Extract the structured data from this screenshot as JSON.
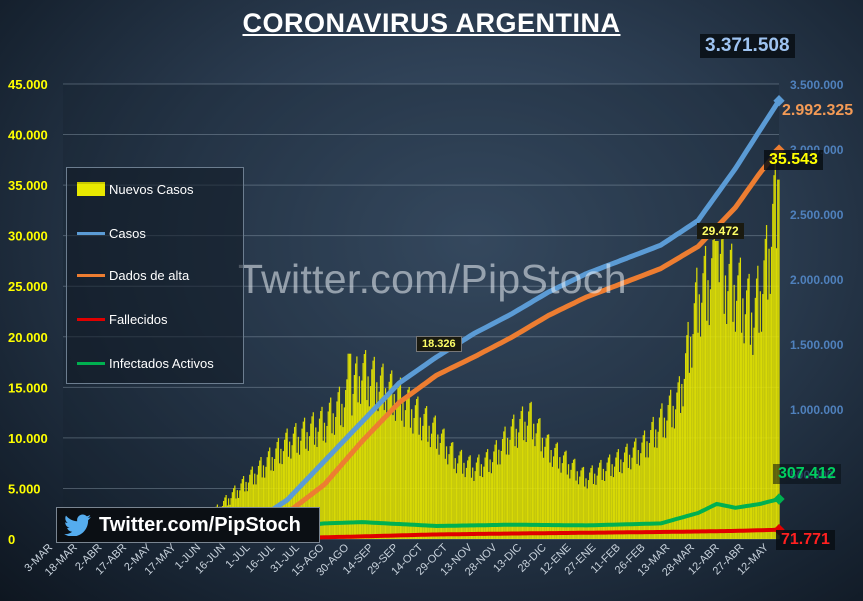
{
  "title": "CORONAVIRUS ARGENTINA",
  "watermark": "Twitter.com/PipStoch",
  "badge": {
    "text": "Twitter.com/PipStoch",
    "icon": "twitter-bird-icon"
  },
  "colors": {
    "nuevos": "#e8e800",
    "casos": "#5b9bd5",
    "alta": "#ed7d31",
    "fallecidos": "#e00000",
    "activos": "#00b050",
    "left_axis_text": "#ffff00",
    "right_axis_text": "#4f81bd"
  },
  "legend": [
    {
      "label": "Nuevos Casos",
      "key": "nuevos",
      "icon": "bar-swatch"
    },
    {
      "label": "Casos",
      "key": "casos",
      "icon": "line-swatch"
    },
    {
      "label": "Dados de alta",
      "key": "alta",
      "icon": "line-swatch"
    },
    {
      "label": "Fallecidos",
      "key": "fallecidos",
      "icon": "line-swatch"
    },
    {
      "label": "Infectados Activos",
      "key": "activos",
      "icon": "line-swatch"
    }
  ],
  "callouts": {
    "casos_last": "3.371.508",
    "alta_last": "2.992.325",
    "nuevos_last": "35.543",
    "activos_last": "307.412",
    "fallecidos_last": "71.771",
    "peak_2020": "18.326",
    "peak_2021": "29.472"
  },
  "chart_data": {
    "type": "bar+line",
    "title": "CORONAVIRUS ARGENTINA",
    "x_ticks": [
      "3-MAR",
      "18-MAR",
      "2-ABR",
      "17-ABR",
      "2-MAY",
      "17-MAY",
      "1-JUN",
      "16-JUN",
      "1-JUL",
      "16-JUL",
      "31-JUL",
      "15-AGO",
      "30-AGO",
      "14-SEP",
      "29-SEP",
      "14-OCT",
      "29-OCT",
      "13-NOV",
      "28-NOV",
      "13-DIC",
      "28-DIC",
      "12-ENE",
      "27-ENE",
      "11-FEB",
      "26-FEB",
      "13-MAR",
      "28-MAR",
      "12-ABR",
      "27-ABR",
      "12-MAY"
    ],
    "left_axis": {
      "min": 0,
      "max": 45000,
      "ticks": [
        0,
        5000,
        10000,
        15000,
        20000,
        25000,
        30000,
        35000,
        40000,
        45000
      ],
      "tick_labels": [
        "0",
        "5.000",
        "10.000",
        "15.000",
        "20.000",
        "25.000",
        "30.000",
        "35.000",
        "40.000",
        "45.000"
      ]
    },
    "right_axis": {
      "min": 0,
      "max": 3500000,
      "ticks": [
        0,
        500000,
        1000000,
        1500000,
        2000000,
        2500000,
        3000000,
        3500000
      ],
      "tick_labels": [
        "0",
        "500.000",
        "1.000.000",
        "1.500.000",
        "2.000.000",
        "2.500.000",
        "3.000.000",
        "3.500.000"
      ]
    },
    "nuevos_casos_approx": {
      "day_index": [
        0,
        60,
        90,
        120,
        150,
        180,
        210,
        225,
        240,
        270,
        300,
        315,
        330,
        345,
        360,
        375,
        390,
        405,
        420,
        435,
        450,
        465,
        480,
        495,
        510,
        525,
        540,
        555,
        565,
        575
      ],
      "values": [
        0,
        150,
        500,
        2500,
        6000,
        9500,
        11500,
        13500,
        16500,
        14000,
        10500,
        8000,
        7000,
        8000,
        10500,
        12000,
        9000,
        7500,
        6000,
        7000,
        8000,
        9000,
        11500,
        14000,
        24000,
        27000,
        25000,
        22000,
        27000,
        35543
      ]
    },
    "peaks": [
      {
        "label": "18.326",
        "day": 230,
        "value": 18326
      },
      {
        "label": "29.472",
        "day": 525,
        "value": 29472
      },
      {
        "label": "35.543",
        "day": 575,
        "value": 35543
      }
    ],
    "series": [
      {
        "name": "Casos",
        "axis": "right",
        "day_index": [
          0,
          60,
          90,
          120,
          150,
          180,
          210,
          240,
          270,
          300,
          330,
          360,
          390,
          420,
          450,
          480,
          510,
          540,
          560,
          575
        ],
        "values": [
          0,
          2000,
          9000,
          40000,
          110000,
          300000,
          600000,
          900000,
          1200000,
          1400000,
          1580000,
          1730000,
          1900000,
          2040000,
          2150000,
          2260000,
          2450000,
          2850000,
          3150000,
          3371508
        ]
      },
      {
        "name": "Dados de alta",
        "axis": "right",
        "day_index": [
          0,
          60,
          90,
          120,
          150,
          180,
          210,
          240,
          270,
          300,
          330,
          360,
          390,
          420,
          450,
          480,
          510,
          540,
          560,
          575
        ],
        "values": [
          0,
          600,
          3000,
          15000,
          60000,
          200000,
          420000,
          750000,
          1050000,
          1260000,
          1400000,
          1550000,
          1720000,
          1860000,
          1970000,
          2080000,
          2250000,
          2550000,
          2820000,
          2992325
        ]
      },
      {
        "name": "Fallecidos",
        "axis": "right",
        "day_index": [
          0,
          120,
          180,
          240,
          300,
          360,
          420,
          480,
          540,
          575
        ],
        "values": [
          0,
          1000,
          6000,
          20000,
          35000,
          42000,
          48000,
          54000,
          62000,
          71771
        ]
      },
      {
        "name": "Infectados Activos",
        "axis": "right",
        "day_index": [
          0,
          60,
          120,
          180,
          210,
          240,
          300,
          360,
          420,
          480,
          510,
          525,
          540,
          560,
          575
        ],
        "values": [
          0,
          1000,
          20000,
          90000,
          120000,
          130000,
          100000,
          110000,
          105000,
          120000,
          200000,
          270000,
          240000,
          270000,
          307412
        ]
      }
    ]
  }
}
